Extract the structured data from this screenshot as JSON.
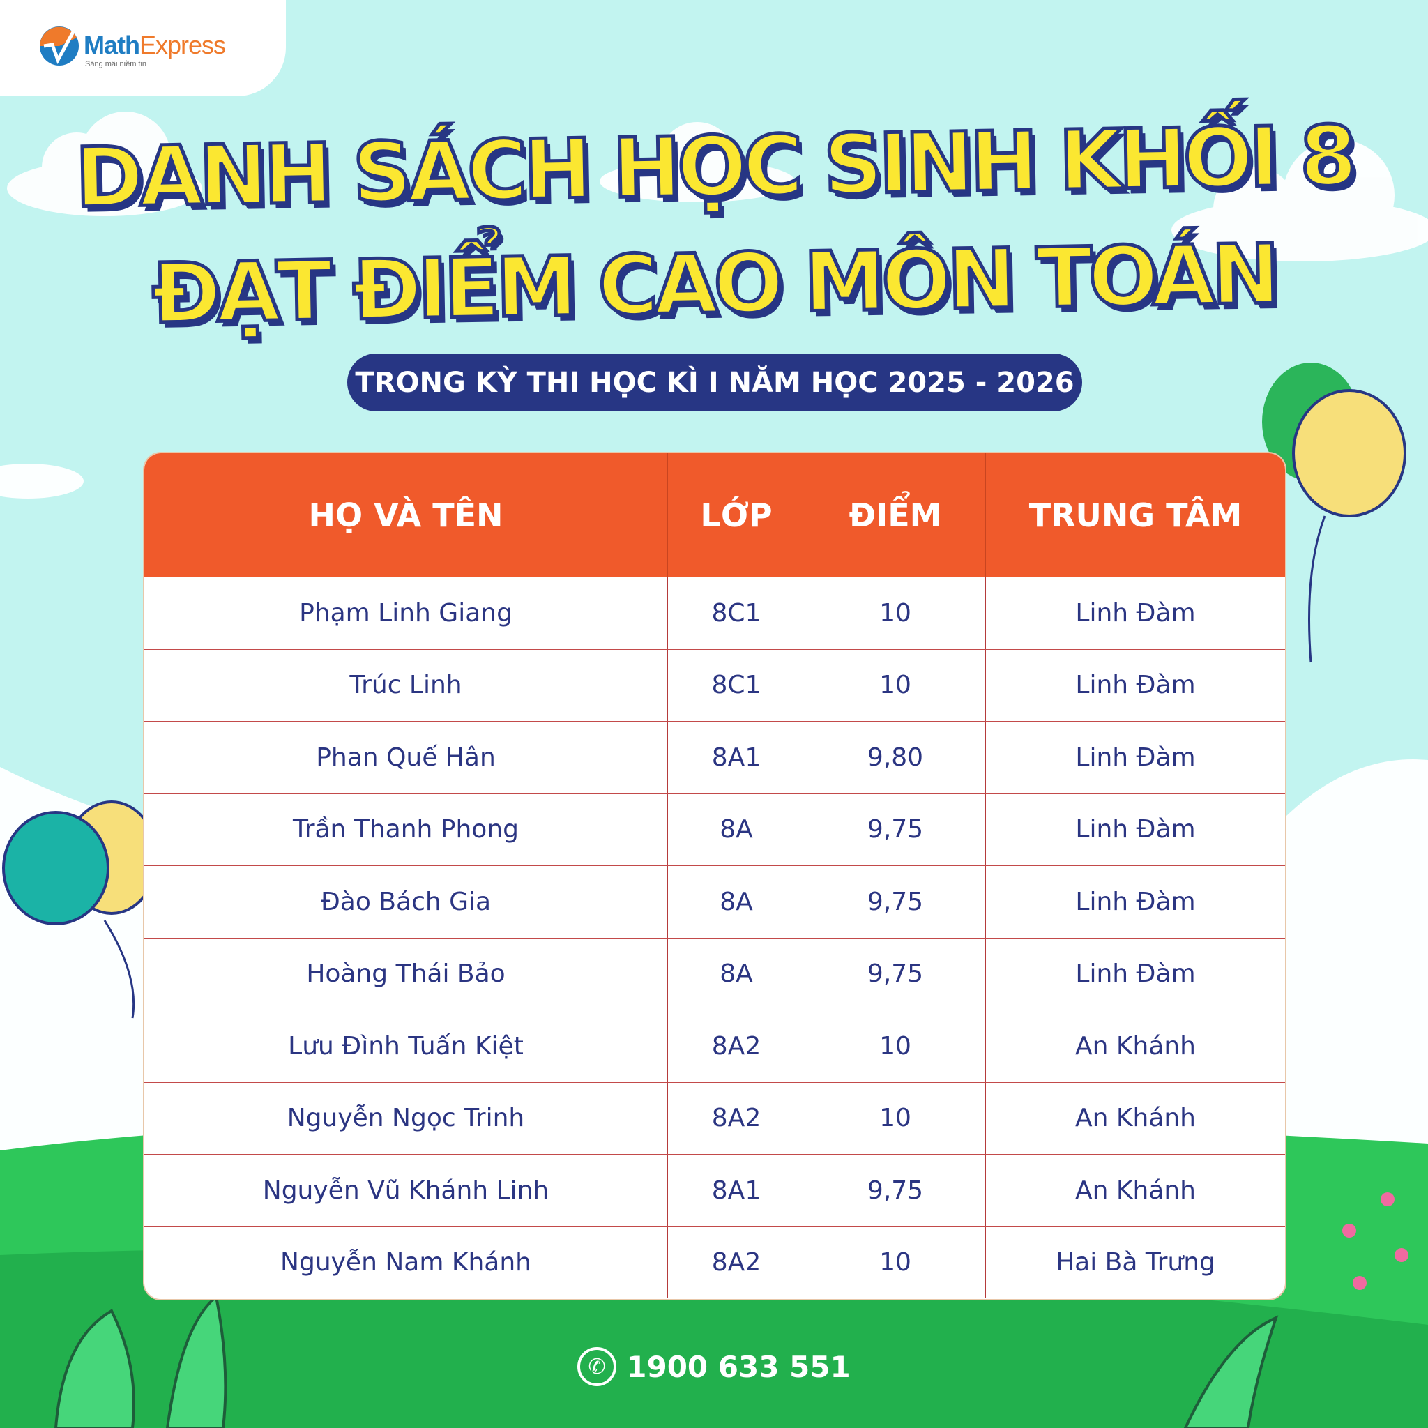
{
  "logo": {
    "brand_a": "Math",
    "brand_b": "Express",
    "tagline": "Sáng mãi niềm tin"
  },
  "title": {
    "line1": "DANH SÁCH HỌC SINH KHỐI 8",
    "line2": "ĐẠT ĐIỂM CAO MÔN TOÁN"
  },
  "subtitle": "TRONG KỲ THI HỌC KÌ I NĂM HỌC 2025 - 2026",
  "table": {
    "headers": [
      "HỌ VÀ TÊN",
      "LỚP",
      "ĐIỂM",
      "TRUNG TÂM"
    ],
    "rows": [
      [
        "Phạm Linh Giang",
        "8C1",
        "10",
        "Linh Đàm"
      ],
      [
        "Trúc Linh",
        "8C1",
        "10",
        "Linh Đàm"
      ],
      [
        "Phan Quế Hân",
        "8A1",
        "9,80",
        "Linh Đàm"
      ],
      [
        "Trần Thanh Phong",
        "8A",
        "9,75",
        "Linh Đàm"
      ],
      [
        "Đào Bách Gia",
        "8A",
        "9,75",
        "Linh Đàm"
      ],
      [
        "Hoàng Thái Bảo",
        "8A",
        "9,75",
        "Linh Đàm"
      ],
      [
        "Lưu Đình Tuấn Kiệt",
        "8A2",
        "10",
        "An Khánh"
      ],
      [
        "Nguyễn Ngọc Trinh",
        "8A2",
        "10",
        "An Khánh"
      ],
      [
        "Nguyễn Vũ Khánh Linh",
        "8A1",
        "9,75",
        "An Khánh"
      ],
      [
        "Nguyễn Nam Khánh",
        "8A2",
        "10",
        "Hai Bà Trưng"
      ]
    ]
  },
  "footer": {
    "phone": "1900 633 551",
    "icon": "phone-icon"
  },
  "colors": {
    "header": "#f05a2b",
    "navy": "#273684",
    "title_yellow": "#fbe731",
    "sky": "#c2f4f0",
    "grass": "#2ec75a"
  }
}
